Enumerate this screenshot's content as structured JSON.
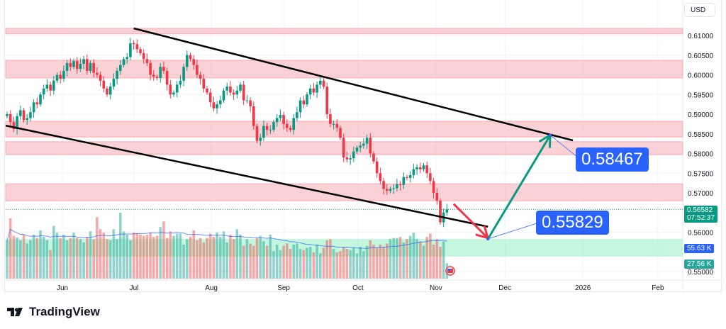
{
  "chart_data": {
    "type": "candlestick",
    "currency": "USD",
    "y_ticks": [
      "0.61000",
      "0.60500",
      "0.60000",
      "0.59500",
      "0.59000",
      "0.58500",
      "0.58000",
      "0.57500",
      "0.57000",
      "0.56000",
      "0.55000"
    ],
    "ylim": [
      0.548,
      0.6165
    ],
    "x_ticks": [
      {
        "label": "Jun",
        "bar": 16.6
      },
      {
        "label": "Jul",
        "bar": 38.1
      },
      {
        "label": "Aug",
        "bar": 61.3
      },
      {
        "label": "Sep",
        "bar": 83
      },
      {
        "label": "Oct",
        "bar": 105.3
      },
      {
        "label": "Nov",
        "bar": 128.7
      },
      {
        "label": "Dec",
        "bar": 149.4
      },
      {
        "label": "2026",
        "bar": 172.8
      },
      {
        "label": "Feb",
        "bar": 195.3
      }
    ],
    "closes": [
      0.59,
      0.588,
      0.5862,
      0.5895,
      0.591,
      0.5885,
      0.589,
      0.5905,
      0.593,
      0.5925,
      0.595,
      0.5965,
      0.5975,
      0.596,
      0.5985,
      0.6,
      0.599,
      0.601,
      0.603,
      0.602,
      0.6035,
      0.6015,
      0.6028,
      0.604,
      0.601,
      0.603,
      0.6005,
      0.6,
      0.5985,
      0.5965,
      0.595,
      0.597,
      0.599,
      0.601,
      0.6025,
      0.604,
      0.6045,
      0.608,
      0.6078,
      0.6065,
      0.6055,
      0.604,
      0.603,
      0.6,
      0.5995,
      0.5992,
      0.602,
      0.601,
      0.5975,
      0.595,
      0.5955,
      0.5975,
      0.5985,
      0.602,
      0.605,
      0.604,
      0.6025,
      0.6,
      0.599,
      0.5965,
      0.5955,
      0.593,
      0.5915,
      0.5925,
      0.5935,
      0.596,
      0.597,
      0.5955,
      0.595,
      0.596,
      0.5975,
      0.5935,
      0.5935,
      0.592,
      0.587,
      0.5832,
      0.584,
      0.587,
      0.586,
      0.586,
      0.588,
      0.589,
      0.5898,
      0.5875,
      0.5865,
      0.586,
      0.589,
      0.5905,
      0.5935,
      0.5925,
      0.595,
      0.5965,
      0.5955,
      0.5975,
      0.5985,
      0.597,
      0.59,
      0.5875,
      0.5875,
      0.5865,
      0.584,
      0.579,
      0.5785,
      0.5788,
      0.5805,
      0.5815,
      0.582,
      0.5825,
      0.584,
      0.58,
      0.578,
      0.575,
      0.573,
      0.571,
      0.5705,
      0.571,
      0.5712,
      0.5722,
      0.572,
      0.574,
      0.5738,
      0.5745,
      0.576,
      0.5765,
      0.576,
      0.577,
      0.575,
      0.573,
      0.57,
      0.568,
      0.5625,
      0.565,
      0.5658
    ],
    "volumes_k": [
      70,
      110,
      78,
      75,
      70,
      80,
      64,
      70,
      80,
      74,
      88,
      76,
      70,
      52,
      96,
      84,
      74,
      80,
      70,
      74,
      84,
      74,
      72,
      66,
      76,
      86,
      72,
      112,
      90,
      84,
      72,
      70,
      90,
      72,
      120,
      86,
      80,
      70,
      84,
      82,
      80,
      78,
      80,
      84,
      76,
      78,
      94,
      104,
      74,
      86,
      78,
      82,
      82,
      62,
      72,
      76,
      88,
      70,
      74,
      66,
      74,
      82,
      76,
      84,
      76,
      86,
      66,
      80,
      72,
      90,
      80,
      60,
      72,
      64,
      60,
      74,
      78,
      68,
      60,
      80,
      50,
      62,
      52,
      60,
      64,
      54,
      62,
      64,
      54,
      52,
      56,
      58,
      48,
      62,
      46,
      56,
      70,
      72,
      54,
      48,
      50,
      58,
      54,
      52,
      56,
      46,
      58,
      50,
      60,
      70,
      62,
      56,
      62,
      58,
      64,
      72,
      74,
      74,
      76,
      66,
      72,
      78,
      84,
      72,
      68,
      60,
      76,
      82,
      62,
      72,
      58,
      68,
      28
    ],
    "volume_labels": {
      "ma": "55.63 K",
      "last": "27.56 K"
    },
    "last_price": "0.56582",
    "countdown": "07:52:37",
    "resistance_zones": [
      [
        0.6104,
        0.6118
      ],
      [
        0.5992,
        0.6037
      ],
      [
        0.5842,
        0.5882
      ],
      [
        0.5797,
        0.583
      ],
      [
        0.568,
        0.5723
      ]
    ],
    "support_zones": [
      [
        0.5538,
        0.5583
      ]
    ],
    "trendlines": [
      {
        "from": {
          "bar": 38,
          "price": 0.6118
        },
        "to": {
          "bar": 169.8,
          "price": 0.58333
        }
      },
      {
        "from": {
          "bar": -0.4,
          "price": 0.5871
        },
        "to": {
          "bar": 144.3,
          "price": 0.5614
        }
      }
    ],
    "arrows": [
      {
        "color": "#f23645",
        "from": {
          "bar": 134,
          "price": 0.5672
        },
        "to": {
          "bar": 144.3,
          "price": 0.5585
        }
      },
      {
        "color": "#089981",
        "from": {
          "bar": 144.3,
          "price": 0.55829
        },
        "to": {
          "bar": 163,
          "price": 0.58467
        }
      }
    ],
    "callouts": [
      {
        "text": "0.55829",
        "bar": 144.3,
        "price": 0.55829
      },
      {
        "text": "0.58467",
        "bar": 163,
        "price": 0.58467
      }
    ],
    "colors": {
      "up": "#089981",
      "down": "#f23645",
      "zone_red": "#f7b3b8",
      "zone_green": "#9ff0c8",
      "accent": "#2962ff"
    }
  },
  "branding": {
    "name": "TradingView"
  }
}
